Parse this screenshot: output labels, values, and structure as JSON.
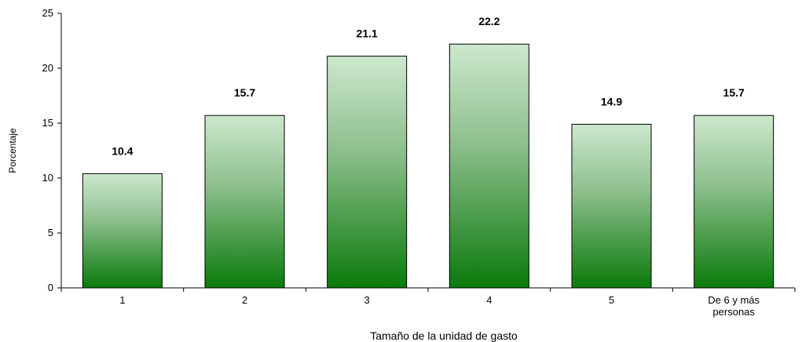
{
  "chart_data": {
    "type": "bar",
    "categories": [
      "1",
      "2",
      "3",
      "4",
      "5",
      "De 6 y más personas"
    ],
    "category_lines": [
      [
        "1"
      ],
      [
        "2"
      ],
      [
        "3"
      ],
      [
        "4"
      ],
      [
        "5"
      ],
      [
        "De 6 y más",
        "personas"
      ]
    ],
    "values": [
      10.4,
      15.7,
      21.1,
      22.2,
      14.9,
      15.7
    ],
    "data_labels": [
      "10.4",
      "15.7",
      "21.1",
      "22.2",
      "14.9",
      "15.7"
    ],
    "title": "",
    "xlabel": "Tamaño de la unidad de gasto",
    "ylabel": "Porcentaje",
    "ylim": [
      0,
      25
    ],
    "yticks": [
      0,
      5,
      10,
      15,
      20,
      25
    ],
    "grid": false,
    "legend": "none",
    "colors": {
      "bar_top": "#cde8cd",
      "bar_mid": "#8fc08f",
      "bar_bottom": "#0a7a0a",
      "bar_border": "#000000",
      "axis": "#000000"
    }
  }
}
